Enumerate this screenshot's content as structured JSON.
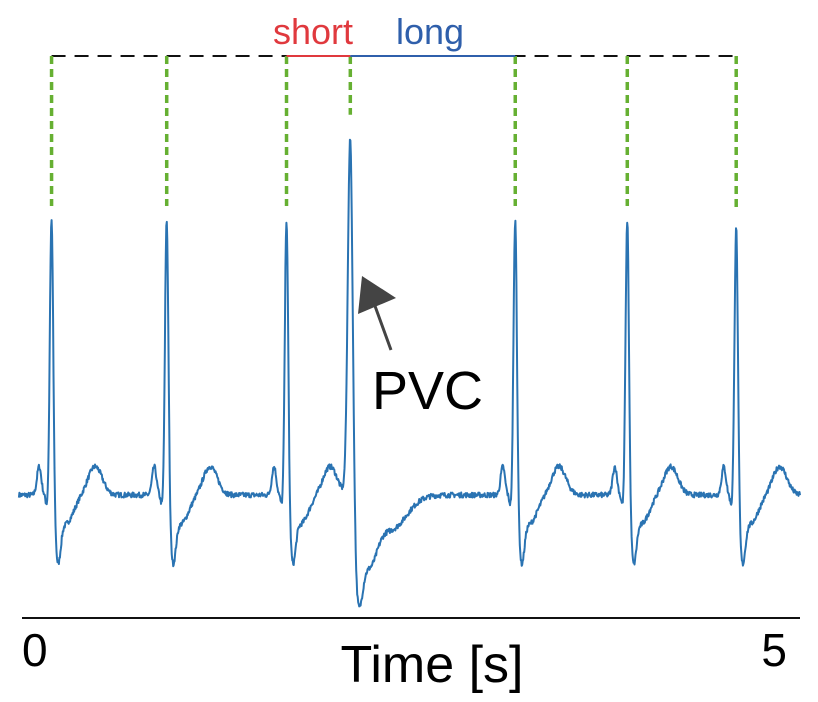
{
  "chart_data": {
    "type": "line",
    "title": "",
    "xlabel": "Time [s]",
    "ylabel": "",
    "xlim": [
      0,
      5
    ],
    "x_tick_labels": [
      "0",
      "5"
    ],
    "series": [
      {
        "name": "ECG",
        "color": "#2a73b2",
        "baseline": 0.0,
        "beats": [
          {
            "t": 0.19,
            "peak": 1.0,
            "kind": "normal"
          },
          {
            "t": 0.93,
            "peak": 1.0,
            "kind": "normal"
          },
          {
            "t": 1.7,
            "peak": 1.0,
            "kind": "normal"
          },
          {
            "t": 2.11,
            "peak": 1.32,
            "kind": "pvc"
          },
          {
            "t": 3.17,
            "peak": 1.0,
            "kind": "normal"
          },
          {
            "t": 3.89,
            "peak": 1.0,
            "kind": "normal"
          },
          {
            "t": 4.59,
            "peak": 0.98,
            "kind": "normal"
          }
        ]
      }
    ],
    "reference_line": {
      "style": "dashed",
      "color": "#111111"
    },
    "r_peak_markers": {
      "style": "dotted",
      "color": "#66b032"
    },
    "intervals": [
      {
        "label": "short",
        "start": 1.7,
        "end": 2.11,
        "color": "#e0393e"
      },
      {
        "label": "long",
        "start": 2.11,
        "end": 3.17,
        "color": "#2f5fab"
      }
    ],
    "annotations": [
      {
        "text": "PVC",
        "target_beat": 3,
        "arrow_color": "#444444"
      }
    ]
  }
}
